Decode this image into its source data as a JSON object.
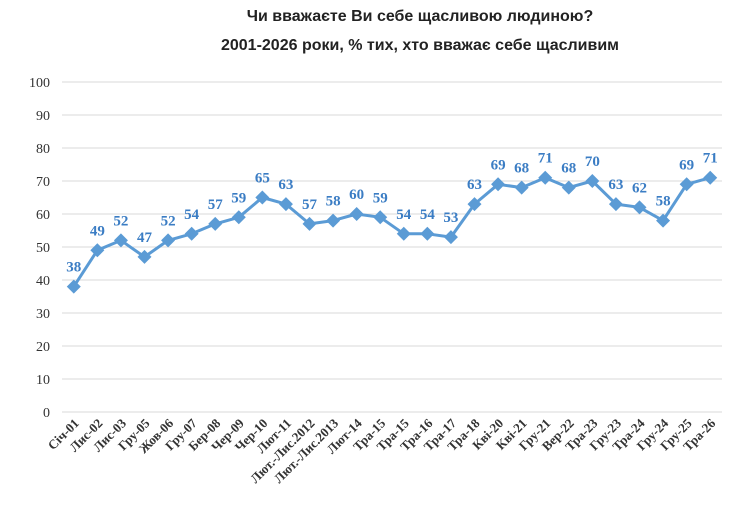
{
  "chart_data": {
    "type": "line",
    "title": "Чи вважаєте Ви себе щасливою людиною?",
    "subtitle": "2001-2026 роки, % тих, хто вважає себе щасливим",
    "categories": [
      "Січ-01",
      "Лис-02",
      "Лис-03",
      "Гру-05",
      "Жов-06",
      "Гру-07",
      "Бер-08",
      "Чер-09",
      "Чер-10",
      "Лют-11",
      "Лют.-Лис.2012",
      "Лют.-Лис.2013",
      "Лют-14",
      "Тра-15",
      "Тра-15",
      "Тра-16",
      "Тра-17",
      "Тра-18",
      "Кві-20",
      "Кві-21",
      "Гру-21",
      "Вер-22",
      "Тра-23",
      "Гру-23",
      "Тра-24",
      "Гру-24",
      "Гру-25",
      "Тра-26"
    ],
    "series": [
      {
        "values": [
          38,
          49,
          52,
          47,
          52,
          54,
          57,
          59,
          65,
          63,
          57,
          58,
          60,
          59,
          54,
          54,
          53,
          63,
          69,
          68,
          71,
          68,
          70,
          63,
          62,
          58,
          69,
          71
        ]
      }
    ],
    "data_labels": [
      "38",
      "49",
      "52",
      "47",
      "52",
      "54",
      "57",
      "59",
      "65",
      "63",
      "57",
      "58",
      "60",
      "59",
      "54",
      "54",
      "53",
      "63",
      "69",
      "68",
      "71",
      "68",
      "70",
      "63",
      "62",
      "58",
      "69",
      "71"
    ],
    "yticks": [
      "0",
      "10",
      "20",
      "30",
      "40",
      "50",
      "60",
      "70",
      "80",
      "90",
      "100"
    ],
    "ylim": [
      0,
      100
    ],
    "grid": true,
    "legend": "none",
    "colors": {
      "line": "#5b9bd5",
      "label": "#3b7dc4",
      "grid": "#d9d9d9"
    }
  }
}
